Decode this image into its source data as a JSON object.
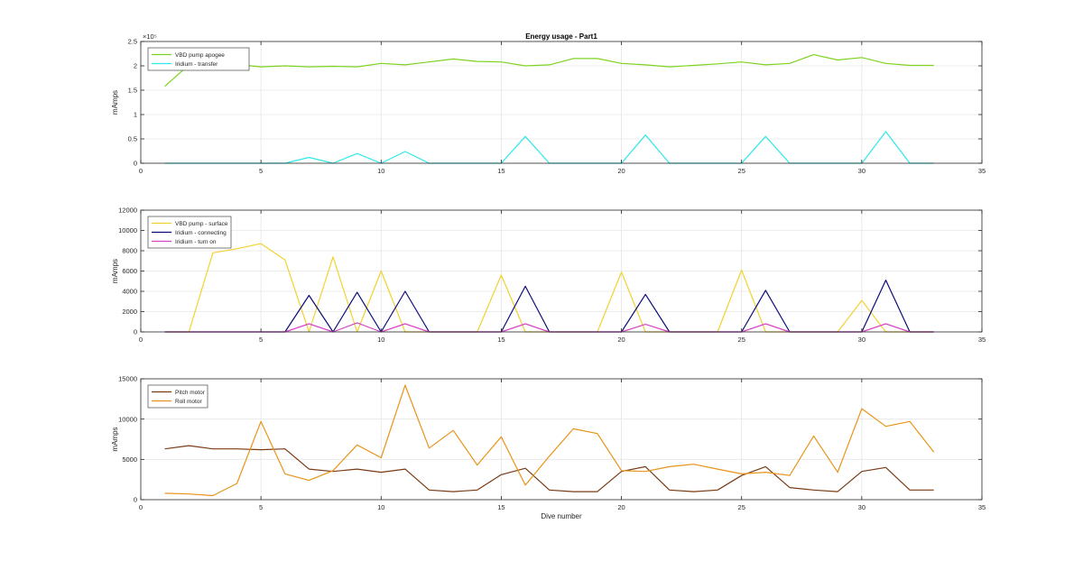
{
  "chart_data": [
    {
      "type": "line",
      "title": "Energy usage - Part1",
      "xlabel": "",
      "ylabel": "mAmps",
      "xlim": [
        0,
        35
      ],
      "ylim": [
        0,
        2.5
      ],
      "exponent_label": "×10⁵",
      "xticks": [
        0,
        5,
        10,
        15,
        20,
        25,
        30,
        35
      ],
      "yticks": [
        0,
        0.5,
        1,
        1.5,
        2,
        2.5
      ],
      "grid": true,
      "legend": "top-left",
      "x": [
        1,
        2,
        3,
        4,
        5,
        6,
        7,
        8,
        9,
        10,
        11,
        12,
        13,
        14,
        15,
        16,
        17,
        18,
        19,
        20,
        21,
        22,
        23,
        24,
        25,
        26,
        27,
        28,
        29,
        30,
        31,
        32,
        33
      ],
      "series": [
        {
          "name": "VBD pump apogee",
          "color": "#7ed321",
          "values": [
            1.58,
            2.02,
            2.07,
            2.03,
            1.98,
            2.0,
            1.98,
            1.99,
            1.98,
            2.05,
            2.02,
            2.08,
            2.14,
            2.09,
            2.08,
            2.0,
            2.02,
            2.15,
            2.15,
            2.05,
            2.02,
            1.98,
            2.01,
            2.04,
            2.08,
            2.02,
            2.05,
            2.23,
            2.12,
            2.17,
            2.05,
            2.01,
            2.01
          ]
        },
        {
          "name": "Iridium - transfer",
          "color": "#2ee8e8",
          "values": [
            0,
            0,
            0,
            0,
            0,
            0,
            0.12,
            0,
            0.2,
            0,
            0.24,
            0,
            0,
            0,
            0,
            0.55,
            0,
            0,
            0,
            0,
            0.58,
            0,
            0,
            0,
            0,
            0.55,
            0,
            0,
            0,
            0,
            0.65,
            0,
            0
          ]
        }
      ]
    },
    {
      "type": "line",
      "title": "",
      "xlabel": "",
      "ylabel": "mAmps",
      "xlim": [
        0,
        35
      ],
      "ylim": [
        0,
        12000
      ],
      "xticks": [
        0,
        5,
        10,
        15,
        20,
        25,
        30,
        35
      ],
      "yticks": [
        0,
        2000,
        4000,
        6000,
        8000,
        10000,
        12000
      ],
      "grid": true,
      "legend": "top-left",
      "x": [
        1,
        2,
        3,
        4,
        5,
        6,
        7,
        8,
        9,
        10,
        11,
        12,
        13,
        14,
        15,
        16,
        17,
        18,
        19,
        20,
        21,
        22,
        23,
        24,
        25,
        26,
        27,
        28,
        29,
        30,
        31,
        32,
        33
      ],
      "series": [
        {
          "name": "VBD pump - surface",
          "color": "#f2d230",
          "values": [
            0,
            0,
            7800,
            8200,
            8700,
            7100,
            0,
            7400,
            0,
            6000,
            0,
            0,
            0,
            0,
            5600,
            0,
            0,
            0,
            0,
            5900,
            0,
            0,
            0,
            0,
            6100,
            0,
            0,
            0,
            0,
            3100,
            0,
            0,
            0
          ]
        },
        {
          "name": "Iridium - connecting",
          "color": "#0d0d7a",
          "values": [
            0,
            0,
            0,
            0,
            0,
            0,
            3600,
            0,
            3900,
            0,
            4000,
            0,
            0,
            0,
            0,
            4500,
            0,
            0,
            0,
            0,
            3700,
            0,
            0,
            0,
            0,
            4100,
            0,
            0,
            0,
            0,
            5100,
            0,
            0
          ]
        },
        {
          "name": "Iridium - turn on",
          "color": "#d946c8",
          "values": [
            0,
            0,
            0,
            0,
            0,
            0,
            800,
            0,
            900,
            0,
            800,
            0,
            0,
            0,
            0,
            800,
            0,
            0,
            0,
            0,
            750,
            0,
            0,
            0,
            0,
            800,
            0,
            0,
            0,
            0,
            800,
            0,
            0
          ]
        }
      ]
    },
    {
      "type": "line",
      "title": "",
      "xlabel": "Dive number",
      "ylabel": "mAmps",
      "xlim": [
        0,
        35
      ],
      "ylim": [
        0,
        15000
      ],
      "xticks": [
        0,
        5,
        10,
        15,
        20,
        25,
        30,
        35
      ],
      "yticks": [
        0,
        5000,
        10000,
        15000
      ],
      "grid": true,
      "legend": "top-left",
      "x": [
        1,
        2,
        3,
        4,
        5,
        6,
        7,
        8,
        9,
        10,
        11,
        12,
        13,
        14,
        15,
        16,
        17,
        18,
        19,
        20,
        21,
        22,
        23,
        24,
        25,
        26,
        27,
        28,
        29,
        30,
        31,
        32,
        33
      ],
      "series": [
        {
          "name": "Pitch motor",
          "color": "#7a3b14",
          "values": [
            6300,
            6700,
            6300,
            6300,
            6200,
            6300,
            3800,
            3500,
            3800,
            3400,
            3800,
            1200,
            1000,
            1200,
            3100,
            3900,
            1200,
            1000,
            1000,
            3500,
            4100,
            1200,
            1000,
            1200,
            3000,
            4100,
            1500,
            1200,
            1000,
            3500,
            4000,
            1200,
            1200
          ]
        },
        {
          "name": "Roll motor",
          "color": "#e8941a",
          "values": [
            800,
            700,
            500,
            2000,
            9700,
            3200,
            2400,
            3600,
            6800,
            5200,
            14200,
            6400,
            8600,
            4300,
            7800,
            1800,
            5400,
            8800,
            8200,
            3600,
            3500,
            4100,
            4400,
            3800,
            3200,
            3400,
            3000,
            7900,
            3400,
            11300,
            9100,
            9700,
            5900
          ]
        }
      ]
    }
  ]
}
